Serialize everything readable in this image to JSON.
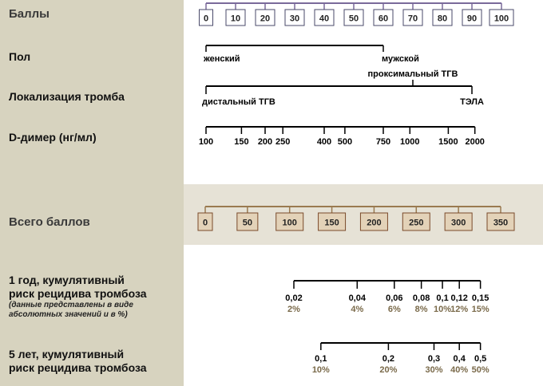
{
  "labels": {
    "points": "Баллы",
    "sex": "Пол",
    "location": "Локализация тромба",
    "ddimer": "D-димер (нг/мл)",
    "total": "Всего баллов",
    "risk1_line1": "1 год, кумулятивный",
    "risk1_line2": "риск рецидива тромбоза",
    "risk1_note1": "(данные представлены в виде",
    "risk1_note2": "абсолютных значений и в %)",
    "risk5_line1": "5 лет, кумулятивный",
    "risk5_line2": "риск рецидива тромбоза"
  },
  "colors": {
    "left_panel": "#d7d3bf",
    "total_band": "#e6e2d6",
    "points_scale": "#7a6a9a",
    "total_scale": "#9a7a50",
    "total_box_fill": "#e3d2b8",
    "percent_text": "#7a6a4a"
  },
  "chart_data": {
    "type": "nomogram",
    "points_scale": {
      "min": 0,
      "max": 100,
      "ticks": [
        "0",
        "10",
        "20",
        "30",
        "40",
        "50",
        "60",
        "70",
        "80",
        "90",
        "100"
      ]
    },
    "sex": {
      "range_points": [
        0,
        60
      ],
      "categories": [
        {
          "label": "женский",
          "points": 0
        },
        {
          "label": "мужской",
          "points": 60
        }
      ]
    },
    "thrombus_location": {
      "range_points": [
        0,
        90
      ],
      "categories": [
        {
          "label": "дистальный ТГВ",
          "points": 0
        },
        {
          "label": "проксимальный ТГВ",
          "points": 70
        },
        {
          "label": "ТЭЛА",
          "points": 90
        }
      ]
    },
    "d_dimer": {
      "unit": "нг/мл",
      "ticks": [
        {
          "label": "100",
          "points": 0
        },
        {
          "label": "150",
          "points": 12
        },
        {
          "label": "200",
          "points": 20
        },
        {
          "label": "250",
          "points": 26
        },
        {
          "label": "400",
          "points": 40
        },
        {
          "label": "500",
          "points": 47
        },
        {
          "label": "750",
          "points": 60
        },
        {
          "label": "1000",
          "points": 69
        },
        {
          "label": "1500",
          "points": 82
        },
        {
          "label": "2000",
          "points": 91
        }
      ]
    },
    "total_points": {
      "min": 0,
      "max": 350,
      "ticks": [
        "0",
        "50",
        "100",
        "150",
        "200",
        "250",
        "300",
        "350"
      ]
    },
    "risk_1_year": {
      "ticks": [
        {
          "value": "0,02",
          "percent": "2%",
          "total": 105
        },
        {
          "value": "0,04",
          "percent": "4%",
          "total": 180
        },
        {
          "value": "0,06",
          "percent": "6%",
          "total": 224
        },
        {
          "value": "0,08",
          "percent": "8%",
          "total": 256
        },
        {
          "value": "0,1",
          "percent": "10%",
          "total": 281
        },
        {
          "value": "0,12",
          "percent": "12%",
          "total": 301
        },
        {
          "value": "0,15",
          "percent": "15%",
          "total": 326
        }
      ]
    },
    "risk_5_years": {
      "ticks": [
        {
          "value": "0,1",
          "percent": "10%",
          "total": 137
        },
        {
          "value": "0,2",
          "percent": "20%",
          "total": 217
        },
        {
          "value": "0,3",
          "percent": "30%",
          "total": 271
        },
        {
          "value": "0,4",
          "percent": "40%",
          "total": 301
        },
        {
          "value": "0,5",
          "percent": "50%",
          "total": 326
        }
      ]
    }
  }
}
